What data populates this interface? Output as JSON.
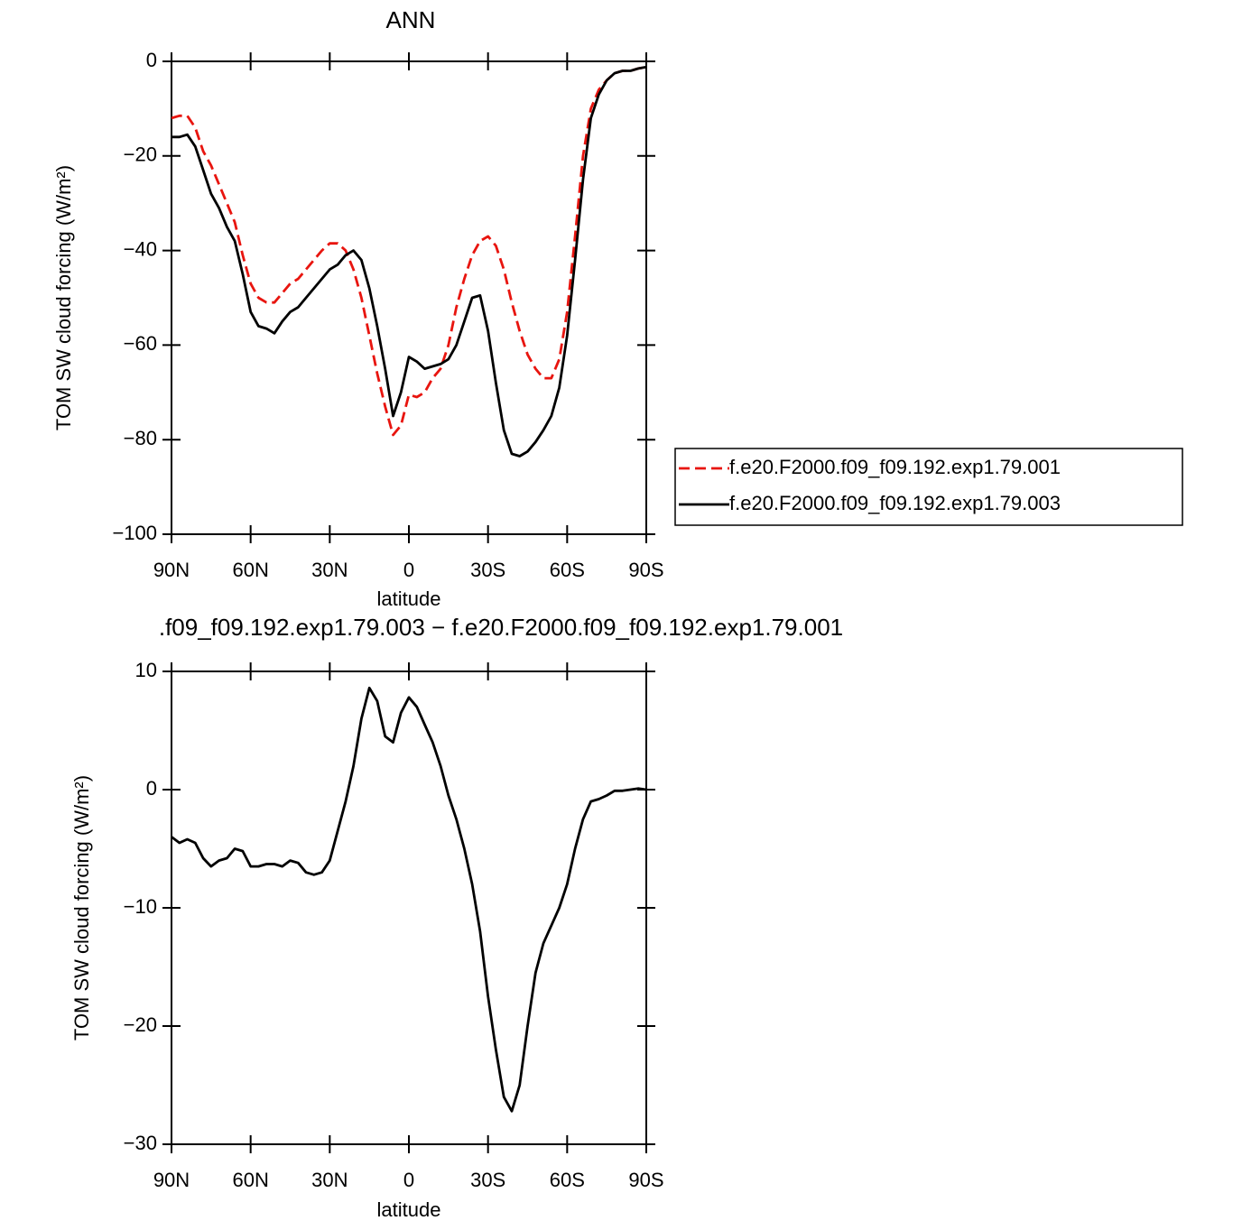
{
  "chart_data": [
    {
      "type": "line",
      "title": "ANN",
      "ylabel": "TOM SW cloud forcing (W/m²)",
      "xlabel": "latitude",
      "x": [
        90,
        87,
        84,
        81,
        78,
        75,
        72,
        69,
        66,
        63,
        60,
        57,
        54,
        51,
        48,
        45,
        42,
        39,
        36,
        33,
        30,
        27,
        24,
        21,
        18,
        15,
        12,
        9,
        6,
        3,
        0,
        -3,
        -6,
        -9,
        -12,
        -15,
        -18,
        -21,
        -24,
        -27,
        -30,
        -33,
        -36,
        -39,
        -42,
        -45,
        -48,
        -51,
        -54,
        -57,
        -60,
        -63,
        -66,
        -69,
        -72,
        -75,
        -78,
        -81,
        -84,
        -87,
        -90
      ],
      "xlim": [
        90,
        -90
      ],
      "xticks": [
        {
          "value": 90,
          "label": "90N"
        },
        {
          "value": 60,
          "label": "60N"
        },
        {
          "value": 30,
          "label": "30N"
        },
        0,
        {
          "value": -30,
          "label": "30S"
        },
        {
          "value": -60,
          "label": "60S"
        },
        {
          "value": -90,
          "label": "90S"
        }
      ],
      "ylim": [
        -100,
        0
      ],
      "yticks": [
        {
          "value": -100,
          "label": "−100"
        },
        {
          "value": -80,
          "label": "−80"
        },
        {
          "value": -60,
          "label": "−60"
        },
        {
          "value": -40,
          "label": "−40"
        },
        {
          "value": -20,
          "label": "−20"
        },
        0
      ],
      "legend": "right",
      "series": [
        {
          "name": "f.e20.F2000.f09_f09.192.exp1.79.001",
          "color": "#e8150f",
          "dash": "dashed",
          "values": [
            -12,
            -11.5,
            -11.5,
            -14,
            -19,
            -22,
            -26,
            -30,
            -34,
            -41,
            -47,
            -50,
            -51,
            -51,
            -49,
            -47,
            -46,
            -44,
            -42,
            -40,
            -38.5,
            -38.5,
            -40,
            -44,
            -50,
            -58,
            -66,
            -73,
            -79,
            -77,
            -70.5,
            -71,
            -70,
            -67,
            -65,
            -60,
            -52,
            -46,
            -41,
            -38,
            -37,
            -39,
            -44,
            -51,
            -57,
            -62,
            -65,
            -67,
            -67,
            -63,
            -53,
            -37,
            -20,
            -10,
            -6,
            -4,
            -2.5,
            -2,
            -2,
            -1.5,
            -1.2
          ]
        },
        {
          "name": "f.e20.F2000.f09_f09.192.exp1.79.003",
          "color": "#000000",
          "dash": "solid",
          "values": [
            -16,
            -16,
            -15.5,
            -18,
            -23,
            -28,
            -31,
            -35,
            -38,
            -45,
            -53,
            -56,
            -56.5,
            -57.5,
            -55,
            -53,
            -52,
            -50,
            -48,
            -46,
            -44,
            -43,
            -41,
            -40,
            -42,
            -48,
            -56,
            -65,
            -75,
            -70,
            -62.5,
            -63.5,
            -65,
            -64.5,
            -64,
            -63,
            -60,
            -55,
            -50,
            -49.5,
            -57,
            -68,
            -78,
            -83,
            -83.5,
            -82.5,
            -80.5,
            -78,
            -75,
            -69,
            -58,
            -42,
            -25,
            -12,
            -7,
            -4,
            -2.5,
            -2,
            -2,
            -1.5,
            -1.2
          ]
        }
      ]
    },
    {
      "type": "line",
      "title": ".f09_f09.192.exp1.79.003 − f.e20.F2000.f09_f09.192.exp1.79.001",
      "ylabel": "TOM SW cloud forcing (W/m²)",
      "xlabel": "latitude",
      "x": [
        90,
        87,
        84,
        81,
        78,
        75,
        72,
        69,
        66,
        63,
        60,
        57,
        54,
        51,
        48,
        45,
        42,
        39,
        36,
        33,
        30,
        27,
        24,
        21,
        18,
        15,
        12,
        9,
        6,
        3,
        0,
        -3,
        -6,
        -9,
        -12,
        -15,
        -18,
        -21,
        -24,
        -27,
        -30,
        -33,
        -36,
        -39,
        -42,
        -45,
        -48,
        -51,
        -54,
        -57,
        -60,
        -63,
        -66,
        -69,
        -72,
        -75,
        -78,
        -81,
        -84,
        -87,
        -90
      ],
      "xlim": [
        90,
        -90
      ],
      "xticks": [
        {
          "value": 90,
          "label": "90N"
        },
        {
          "value": 60,
          "label": "60N"
        },
        {
          "value": 30,
          "label": "30N"
        },
        0,
        {
          "value": -30,
          "label": "30S"
        },
        {
          "value": -60,
          "label": "60S"
        },
        {
          "value": -90,
          "label": "90S"
        }
      ],
      "ylim": [
        -30,
        10
      ],
      "yticks": [
        {
          "value": -30,
          "label": "−30"
        },
        {
          "value": -20,
          "label": "−20"
        },
        {
          "value": -10,
          "label": "−10"
        },
        0,
        10
      ],
      "series": [
        {
          "color": "#000000",
          "dash": "solid",
          "values": [
            -4,
            -4.5,
            -4.2,
            -4.5,
            -5.8,
            -6.5,
            -6,
            -5.8,
            -5,
            -5.2,
            -6.5,
            -6.5,
            -6.3,
            -6.3,
            -6.5,
            -6,
            -6.2,
            -7,
            -7.2,
            -7,
            -6,
            -3.5,
            -1,
            2,
            6,
            8.6,
            7.5,
            4.5,
            4,
            6.5,
            7.8,
            7,
            5.5,
            4,
            2,
            -0.5,
            -2.5,
            -5,
            -8,
            -12,
            -17.5,
            -22,
            -26,
            -27.2,
            -25,
            -20,
            -15.5,
            -13,
            -11.5,
            -10,
            -8,
            -5,
            -2.5,
            -1,
            -0.8,
            -0.5,
            -0.1,
            -0.1,
            0,
            0.1,
            0
          ]
        }
      ]
    }
  ]
}
